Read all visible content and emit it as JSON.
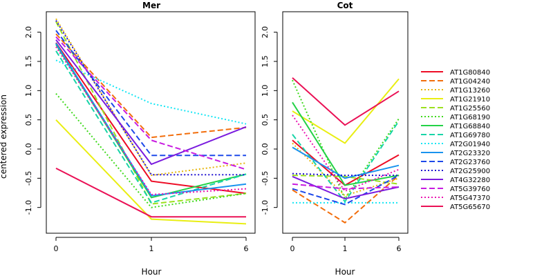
{
  "chart_data": [
    {
      "type": "line",
      "title": "Mer",
      "xlabel": "Hour",
      "ylabel": "centered expression",
      "x": [
        "0",
        "1",
        "6"
      ],
      "ylim": [
        -1.4,
        2.3
      ],
      "yticks": [
        -1.0,
        -0.5,
        0.0,
        0.5,
        1.0,
        1.5,
        2.0
      ],
      "grid": false,
      "series": [
        {
          "name": "AT1G80840",
          "values": [
            1.82,
            -0.55,
            -0.76
          ]
        },
        {
          "name": "AT1G04240",
          "values": [
            1.97,
            0.2,
            0.37
          ]
        },
        {
          "name": "AT1G13260",
          "values": [
            2.23,
            -0.45,
            -0.24
          ]
        },
        {
          "name": "AT1G21910",
          "values": [
            0.5,
            -1.2,
            -1.28
          ]
        },
        {
          "name": "AT1G25560",
          "values": [
            2.18,
            -0.94,
            -0.76
          ]
        },
        {
          "name": "AT1G68190",
          "values": [
            0.95,
            -1.0,
            -0.76
          ]
        },
        {
          "name": "AT1G68840",
          "values": [
            1.79,
            -0.83,
            -0.43
          ]
        },
        {
          "name": "AT1G69780",
          "values": [
            1.68,
            -0.92,
            -0.43
          ]
        },
        {
          "name": "AT2G01940",
          "values": [
            1.52,
            0.78,
            0.43
          ]
        },
        {
          "name": "AT2G23320",
          "values": [
            1.81,
            -0.8,
            -0.6
          ]
        },
        {
          "name": "AT2G23760",
          "values": [
            2.03,
            -0.11,
            -0.11
          ]
        },
        {
          "name": "AT2G25900",
          "values": [
            2.2,
            -0.44,
            -0.44
          ]
        },
        {
          "name": "AT4G32280",
          "values": [
            1.87,
            -0.26,
            0.38
          ]
        },
        {
          "name": "AT5G39760",
          "values": [
            1.92,
            0.15,
            -0.35
          ]
        },
        {
          "name": "AT5G47370",
          "values": [
            1.75,
            -0.78,
            -0.68
          ]
        },
        {
          "name": "AT5G65670",
          "values": [
            -0.33,
            -1.16,
            -1.16
          ]
        }
      ]
    },
    {
      "type": "line",
      "title": "Cot",
      "xlabel": "Hour",
      "ylabel": "",
      "x": [
        "0",
        "1",
        "6"
      ],
      "ylim": [
        -1.4,
        2.3
      ],
      "yticks": [
        -1.0,
        -0.5,
        0.0,
        0.5,
        1.0,
        1.5,
        2.0
      ],
      "grid": false,
      "series": [
        {
          "name": "AT1G80840",
          "values": [
            0.15,
            -0.62,
            -0.1
          ]
        },
        {
          "name": "AT1G04240",
          "values": [
            -0.7,
            -1.26,
            -0.45
          ]
        },
        {
          "name": "AT1G13260",
          "values": [
            0.1,
            -0.8,
            -0.5
          ]
        },
        {
          "name": "AT1G21910",
          "values": [
            0.65,
            0.1,
            1.2
          ]
        },
        {
          "name": "AT1G25560",
          "values": [
            -0.45,
            -0.47,
            -0.6
          ]
        },
        {
          "name": "AT1G68190",
          "values": [
            1.18,
            -0.85,
            0.52
          ]
        },
        {
          "name": "AT1G68840",
          "values": [
            0.8,
            -0.62,
            -0.45
          ]
        },
        {
          "name": "AT1G69780",
          "values": [
            0.25,
            -0.9,
            0.48
          ]
        },
        {
          "name": "AT2G01940",
          "values": [
            -0.92,
            -0.92,
            -0.92
          ]
        },
        {
          "name": "AT2G23320",
          "values": [
            0.03,
            -0.5,
            -0.28
          ]
        },
        {
          "name": "AT2G23760",
          "values": [
            -0.68,
            -0.95,
            -0.45
          ]
        },
        {
          "name": "AT2G25900",
          "values": [
            -0.42,
            -0.45,
            -0.45
          ]
        },
        {
          "name": "AT4G32280",
          "values": [
            -0.47,
            -0.85,
            -0.65
          ]
        },
        {
          "name": "AT5G39760",
          "values": [
            -0.6,
            -0.68,
            -0.65
          ]
        },
        {
          "name": "AT5G47370",
          "values": [
            0.58,
            -0.72,
            -0.35
          ]
        },
        {
          "name": "AT5G65670",
          "values": [
            1.22,
            0.41,
            0.99
          ]
        }
      ]
    }
  ],
  "legend": {
    "placement": "right",
    "entries": [
      {
        "name": "AT1G80840",
        "color": "#ed0c25",
        "dash": "solid"
      },
      {
        "name": "AT1G04240",
        "color": "#f26d0b",
        "dash": "longdash"
      },
      {
        "name": "AT1G13260",
        "color": "#e6b50a",
        "dash": "dotted"
      },
      {
        "name": "AT1G21910",
        "color": "#e9ee12",
        "dash": "solid"
      },
      {
        "name": "AT1G25560",
        "color": "#9be01e",
        "dash": "longdash"
      },
      {
        "name": "AT1G68190",
        "color": "#3dd91a",
        "dash": "dotted"
      },
      {
        "name": "AT1G68840",
        "color": "#23d247",
        "dash": "solid"
      },
      {
        "name": "AT1G69780",
        "color": "#17d4a7",
        "dash": "longdash"
      },
      {
        "name": "AT2G01940",
        "color": "#12e6f4",
        "dash": "dotted"
      },
      {
        "name": "AT2G23320",
        "color": "#1993ee",
        "dash": "solid"
      },
      {
        "name": "AT2G23760",
        "color": "#1c48e9",
        "dash": "longdash"
      },
      {
        "name": "AT2G25900",
        "color": "#1d0fd0",
        "dash": "dotted"
      },
      {
        "name": "AT4G32280",
        "color": "#7a1bde",
        "dash": "solid"
      },
      {
        "name": "AT5G39760",
        "color": "#c81ae0",
        "dash": "longdash"
      },
      {
        "name": "AT5G47370",
        "color": "#ea14b1",
        "dash": "dotted"
      },
      {
        "name": "AT5G65670",
        "color": "#ea1055",
        "dash": "solid"
      }
    ]
  }
}
